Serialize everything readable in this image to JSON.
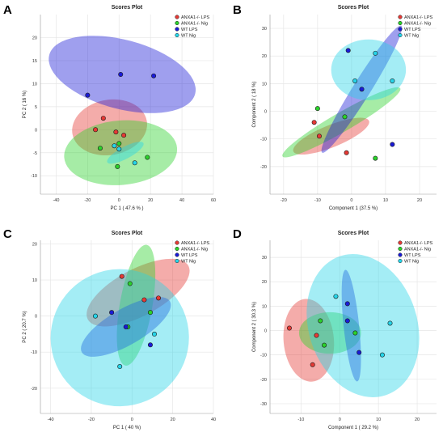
{
  "colors": {
    "ANXA1_LPS": "#e53935",
    "ANXA1_Nig": "#2bd12b",
    "WT_LPS": "#1a1ad6",
    "WT_Nig": "#26d4e8",
    "grid": "#e6e6e6"
  },
  "chart_data": [
    {
      "type": "scatter",
      "panel": "A",
      "title": "Scores Plot",
      "xlabel": "PC 1 ( 47.6 % )",
      "ylabel": "PC 2 ( 16 %)",
      "xlim": [
        -50,
        60
      ],
      "ylim": [
        -14,
        25
      ],
      "xticks": [
        -40,
        -20,
        0,
        20,
        40,
        60
      ],
      "yticks": [
        -10,
        -5,
        0,
        5,
        10,
        15,
        20
      ],
      "legend_position": "top-right",
      "series": [
        {
          "name": "ANXA1-/- LPS",
          "color": "#e53935",
          "points": [
            [
              -15,
              0
            ],
            [
              -10,
              2.5
            ],
            [
              3,
              -1.2
            ],
            [
              -2,
              -0.5
            ]
          ],
          "ellipse": {
            "cx": -6,
            "cy": 0.5,
            "rx": 24,
            "ry": 6,
            "angle": -10
          }
        },
        {
          "name": "ANXA1-/- Nig",
          "color": "#2bd12b",
          "points": [
            [
              -12,
              -4
            ],
            [
              -1,
              -8
            ],
            [
              18,
              -6
            ],
            [
              0,
              -3
            ]
          ],
          "ellipse": {
            "cx": 1,
            "cy": -5,
            "rx": 36,
            "ry": 7,
            "angle": -5
          }
        },
        {
          "name": "WT LPS",
          "color": "#1a1ad6",
          "points": [
            [
              -20,
              7.5
            ],
            [
              1,
              12
            ],
            [
              22,
              11.7
            ]
          ],
          "ellipse": {
            "cx": 2,
            "cy": 12,
            "rx": 48,
            "ry": 7.5,
            "angle": 15
          }
        },
        {
          "name": "WT Nig",
          "color": "#26d4e8",
          "points": [
            [
              -3,
              -3.5
            ],
            [
              0,
              -4.2
            ],
            [
              10,
              -7.2
            ]
          ],
          "ellipse": {
            "cx": 4,
            "cy": -5,
            "rx": 13,
            "ry": 1.3,
            "angle": -28
          }
        }
      ]
    },
    {
      "type": "scatter",
      "panel": "B",
      "title": "Scores Plot",
      "xlabel": "Component 1 (37.5 %)",
      "ylabel": "Component 2 ( 18 %)",
      "xlim": [
        -24,
        25
      ],
      "ylim": [
        -30,
        35
      ],
      "xticks": [
        -20,
        -10,
        0,
        10,
        20
      ],
      "yticks": [
        -20,
        -10,
        0,
        10,
        20,
        30
      ],
      "legend_position": "top-right",
      "series": [
        {
          "name": "ANXA1-/- LPS",
          "color": "#e53935",
          "points": [
            [
              -11,
              -4
            ],
            [
              -9.5,
              -9
            ],
            [
              -1.5,
              -15
            ]
          ],
          "ellipse": {
            "cx": -6,
            "cy": -9,
            "rx": 12,
            "ry": 4,
            "angle": -22
          }
        },
        {
          "name": "ANXA1-/- Nig",
          "color": "#2bd12b",
          "points": [
            [
              -10,
              1
            ],
            [
              -2,
              -2
            ],
            [
              7,
              -17
            ]
          ],
          "ellipse": {
            "cx": -3,
            "cy": -4,
            "rx": 20,
            "ry": 3.5,
            "angle": -30
          }
        },
        {
          "name": "WT LPS",
          "color": "#1a1ad6",
          "points": [
            [
              -1,
              22
            ],
            [
              3,
              8
            ],
            [
              12,
              -12
            ]
          ],
          "ellipse": {
            "cx": 3,
            "cy": 8,
            "rx": 22,
            "ry": 3.2,
            "angle": -58
          }
        },
        {
          "name": "WT Nig",
          "color": "#26d4e8",
          "points": [
            [
              7,
              21
            ],
            [
              1,
              11
            ],
            [
              12,
              11
            ]
          ],
          "ellipse": {
            "cx": 5,
            "cy": 15,
            "rx": 11,
            "ry": 11,
            "angle": 0
          }
        }
      ]
    },
    {
      "type": "scatter",
      "panel": "C",
      "title": "Scores Plot",
      "xlabel": "PC 1 ( 40 %)",
      "ylabel": "PC 2 ( 20.7 %)",
      "xlim": [
        -45,
        40
      ],
      "ylim": [
        -27,
        21
      ],
      "xticks": [
        -40,
        -20,
        0,
        20,
        40
      ],
      "yticks": [
        -20,
        -10,
        0,
        10,
        20
      ],
      "legend_position": "top-right",
      "series": [
        {
          "name": "ANXA1-/- LPS",
          "color": "#e53935",
          "points": [
            [
              -5,
              11
            ],
            [
              6,
              4.5
            ],
            [
              13,
              5
            ]
          ],
          "ellipse": {
            "cx": 3,
            "cy": 6.5,
            "rx": 28,
            "ry": 6.5,
            "angle": -28
          }
        },
        {
          "name": "ANXA1-/- Nig",
          "color": "#2bd12b",
          "points": [
            [
              -1,
              9
            ],
            [
              -2,
              -3
            ],
            [
              9,
              1
            ]
          ],
          "ellipse": {
            "cx": 2,
            "cy": 3,
            "rx": 8,
            "ry": 17,
            "angle": 10
          }
        },
        {
          "name": "WT LPS",
          "color": "#1a1ad6",
          "points": [
            [
              -10,
              1
            ],
            [
              -3,
              -3
            ],
            [
              9,
              -8
            ]
          ],
          "ellipse": {
            "cx": -3,
            "cy": -3,
            "rx": 25,
            "ry": 5,
            "angle": -30
          }
        },
        {
          "name": "WT Nig",
          "color": "#26d4e8",
          "points": [
            [
              -18,
              0
            ],
            [
              -6,
              -14
            ],
            [
              11,
              -5
            ]
          ],
          "ellipse": {
            "cx": -6,
            "cy": -6,
            "rx": 34,
            "ry": 19,
            "angle": -12
          }
        }
      ]
    },
    {
      "type": "scatter",
      "panel": "D",
      "title": "Scores Plot",
      "xlabel": "Component 1 ( 29.2 %)",
      "ylabel": "Component 2 ( 30.3 %)",
      "xlim": [
        -18,
        25
      ],
      "ylim": [
        -34,
        37
      ],
      "xticks": [
        -10,
        0,
        10,
        20
      ],
      "yticks": [
        -30,
        -20,
        -10,
        0,
        10,
        20,
        30
      ],
      "legend_position": "top-right",
      "series": [
        {
          "name": "ANXA1-/- LPS",
          "color": "#e53935",
          "points": [
            [
              -13,
              1
            ],
            [
              -6,
              -2
            ],
            [
              -7,
              -14
            ]
          ],
          "ellipse": {
            "cx": -8,
            "cy": -4,
            "rx": 6.5,
            "ry": 17,
            "angle": -5
          }
        },
        {
          "name": "ANXA1-/- Nig",
          "color": "#2bd12b",
          "points": [
            [
              -5,
              4
            ],
            [
              -4,
              -6
            ],
            [
              4,
              -1
            ]
          ],
          "ellipse": {
            "cx": -2.5,
            "cy": -1,
            "rx": 8,
            "ry": 8.5,
            "angle": 0
          }
        },
        {
          "name": "WT LPS",
          "color": "#1a1ad6",
          "points": [
            [
              2,
              11
            ],
            [
              2,
              4
            ],
            [
              5,
              -9
            ]
          ],
          "ellipse": {
            "cx": 3,
            "cy": 2,
            "rx": 2,
            "ry": 23,
            "angle": -6
          }
        },
        {
          "name": "WT Nig",
          "color": "#26d4e8",
          "points": [
            [
              -1,
              14
            ],
            [
              13,
              3
            ],
            [
              11,
              -10
            ]
          ],
          "ellipse": {
            "cx": 6,
            "cy": 2,
            "rx": 14,
            "ry": 30,
            "angle": -18
          }
        }
      ]
    }
  ]
}
